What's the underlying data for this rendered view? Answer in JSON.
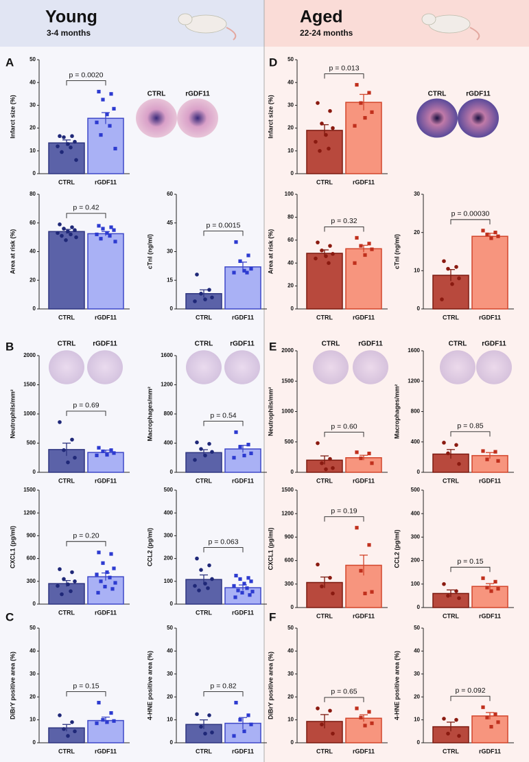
{
  "header": {
    "young": {
      "title": "Young",
      "subtitle": "3-4 months"
    },
    "aged": {
      "title": "Aged",
      "subtitle": "22-24 months"
    }
  },
  "image_labels": [
    [
      "CTRL",
      "rGDF11"
    ],
    [
      "CTRL",
      "rGDF11"
    ],
    [
      "CTRL",
      "rGDF11"
    ],
    [
      "CTRL",
      "rGDF11"
    ],
    [
      "CTRL",
      "rGDF11"
    ],
    [
      "CTRL",
      "rGDF11"
    ]
  ],
  "chart_data": [
    {
      "type": "bar",
      "panel": "A",
      "ylabel": "Infarct size (%)",
      "categories": [
        "CTRL",
        "rGDF11"
      ],
      "values": [
        13.5,
        24.3
      ],
      "errors": [
        1.3,
        2.5
      ],
      "points": [
        [
          16.5,
          16.5,
          16,
          14,
          13,
          12,
          11.5,
          9.5,
          6
        ],
        [
          36,
          35,
          32.5,
          28.5,
          26,
          22.5,
          21,
          17,
          11
        ]
      ],
      "annotation": "p = 0.0020",
      "ylim": [
        0,
        50
      ],
      "yticks": [
        0,
        10,
        20,
        30,
        40,
        50
      ],
      "colors": [
        "#5b62a8",
        "#a9b1f5"
      ],
      "edge_colors": [
        "#2e3580",
        "#3d47c8"
      ],
      "point_colors": [
        "#1f2878",
        "#2d3bd0"
      ],
      "markers": [
        "circle",
        "square"
      ]
    },
    {
      "type": "bar",
      "ylabel": "Area at risk (%)",
      "categories": [
        "CTRL",
        "rGDF11"
      ],
      "values": [
        54,
        52.5
      ],
      "errors": [
        1.5,
        1.5
      ],
      "points": [
        [
          59,
          57,
          56,
          55,
          54,
          53,
          52,
          51,
          50,
          48
        ],
        [
          58,
          57,
          56,
          55,
          53,
          52,
          51,
          49,
          47
        ]
      ],
      "annotation": "p = 0.42",
      "ylim": [
        0,
        80
      ],
      "yticks": [
        0,
        20,
        40,
        60,
        80
      ],
      "colors": [
        "#5b62a8",
        "#a9b1f5"
      ],
      "edge_colors": [
        "#2e3580",
        "#3d47c8"
      ],
      "point_colors": [
        "#1f2878",
        "#2d3bd0"
      ],
      "markers": [
        "circle",
        "square"
      ]
    },
    {
      "type": "bar",
      "ylabel": "cTnI (ng/ml)",
      "categories": [
        "CTRL",
        "rGDF11"
      ],
      "values": [
        8,
        22
      ],
      "errors": [
        2,
        2.5
      ],
      "points": [
        [
          18,
          10,
          8,
          6,
          5,
          4
        ],
        [
          35,
          28,
          25,
          21,
          20,
          19,
          19
        ]
      ],
      "annotation": "p = 0.0015",
      "ylim": [
        0,
        60
      ],
      "yticks": [
        0,
        15,
        30,
        45,
        60
      ],
      "colors": [
        "#5b62a8",
        "#a9b1f5"
      ],
      "edge_colors": [
        "#2e3580",
        "#3d47c8"
      ],
      "point_colors": [
        "#1f2878",
        "#2d3bd0"
      ],
      "markers": [
        "circle",
        "square"
      ]
    },
    {
      "type": "bar",
      "panel": "B",
      "ylabel": "Neutrophils/mm²",
      "categories": [
        "CTRL",
        "rGDF11"
      ],
      "values": [
        390,
        340
      ],
      "errors": [
        110,
        40
      ],
      "points": [
        [
          860,
          560,
          380,
          250,
          170
        ],
        [
          420,
          380,
          360,
          330,
          300,
          290
        ]
      ],
      "annotation": "p = 0.69",
      "ylim": [
        0,
        2000
      ],
      "yticks": [
        0,
        500,
        1000,
        1500,
        2000
      ],
      "colors": [
        "#5b62a8",
        "#a9b1f5"
      ],
      "edge_colors": [
        "#2e3580",
        "#3d47c8"
      ],
      "point_colors": [
        "#1f2878",
        "#2d3bd0"
      ],
      "markers": [
        "circle",
        "square"
      ]
    },
    {
      "type": "bar",
      "ylabel": "Macrophages/mm²",
      "categories": [
        "CTRL",
        "rGDF11"
      ],
      "values": [
        270,
        320
      ],
      "errors": [
        40,
        50
      ],
      "points": [
        [
          410,
          390,
          320,
          280,
          230,
          170
        ],
        [
          550,
          380,
          350,
          260,
          230,
          200
        ]
      ],
      "annotation": "p = 0.54",
      "ylim": [
        0,
        1600
      ],
      "yticks": [
        0,
        400,
        800,
        1200,
        1600
      ],
      "colors": [
        "#5b62a8",
        "#a9b1f5"
      ],
      "edge_colors": [
        "#2e3580",
        "#3d47c8"
      ],
      "point_colors": [
        "#1f2878",
        "#2d3bd0"
      ],
      "markers": [
        "circle",
        "square"
      ]
    },
    {
      "type": "bar",
      "ylabel": "CXCL1 (pg/ml)",
      "categories": [
        "CTRL",
        "rGDF11"
      ],
      "values": [
        270,
        360
      ],
      "errors": [
        40,
        50
      ],
      "points": [
        [
          460,
          420,
          330,
          300,
          260,
          240,
          170,
          130
        ],
        [
          680,
          660,
          540,
          470,
          420,
          390,
          350,
          300,
          280,
          230,
          200,
          150
        ]
      ],
      "annotation": "p = 0.20",
      "ylim": [
        0,
        1500
      ],
      "yticks": [
        0,
        300,
        600,
        900,
        1200,
        1500
      ],
      "colors": [
        "#5b62a8",
        "#a9b1f5"
      ],
      "edge_colors": [
        "#2e3580",
        "#3d47c8"
      ],
      "point_colors": [
        "#1f2878",
        "#2d3bd0"
      ],
      "markers": [
        "circle",
        "square"
      ]
    },
    {
      "type": "bar",
      "ylabel": "CCL2 (pg/ml)",
      "categories": [
        "CTRL",
        "rGDF11"
      ],
      "values": [
        108,
        72
      ],
      "errors": [
        20,
        12
      ],
      "points": [
        [
          200,
          170,
          150,
          110,
          90,
          80,
          70,
          60
        ],
        [
          125,
          115,
          110,
          100,
          90,
          80,
          70,
          60,
          55,
          50,
          40,
          30
        ]
      ],
      "annotation": "p = 0.063",
      "ylim": [
        0,
        500
      ],
      "yticks": [
        0,
        100,
        200,
        300,
        400,
        500
      ],
      "colors": [
        "#5b62a8",
        "#a9b1f5"
      ],
      "edge_colors": [
        "#2e3580",
        "#3d47c8"
      ],
      "point_colors": [
        "#1f2878",
        "#2d3bd0"
      ],
      "markers": [
        "circle",
        "square"
      ]
    },
    {
      "type": "bar",
      "panel": "C",
      "ylabel": "DiBrY positive area (%)",
      "categories": [
        "CTRL",
        "rGDF11"
      ],
      "values": [
        6.5,
        9.7
      ],
      "errors": [
        1.5,
        1.5
      ],
      "points": [
        [
          12,
          9,
          6,
          5,
          3
        ],
        [
          17.5,
          13,
          10,
          9.5,
          9,
          8.5
        ]
      ],
      "annotation": "p = 0.15",
      "ylim": [
        0,
        50
      ],
      "yticks": [
        0,
        10,
        20,
        30,
        40,
        50
      ],
      "colors": [
        "#5b62a8",
        "#a9b1f5"
      ],
      "edge_colors": [
        "#2e3580",
        "#3d47c8"
      ],
      "point_colors": [
        "#1f2878",
        "#2d3bd0"
      ],
      "markers": [
        "circle",
        "square"
      ]
    },
    {
      "type": "bar",
      "ylabel": "4-HNE positive area (%)",
      "categories": [
        "CTRL",
        "rGDF11"
      ],
      "values": [
        8,
        8.5
      ],
      "errors": [
        2,
        2.5
      ],
      "points": [
        [
          12.5,
          12,
          7,
          4.5,
          4
        ],
        [
          17.5,
          12,
          10,
          8,
          5,
          3
        ]
      ],
      "annotation": "p = 0.82",
      "ylim": [
        0,
        50
      ],
      "yticks": [
        0,
        10,
        20,
        30,
        40,
        50
      ],
      "colors": [
        "#5b62a8",
        "#a9b1f5"
      ],
      "edge_colors": [
        "#2e3580",
        "#3d47c8"
      ],
      "point_colors": [
        "#1f2878",
        "#2d3bd0"
      ],
      "markers": [
        "circle",
        "square"
      ]
    },
    {
      "type": "bar",
      "panel": "D",
      "ylabel": "Infarct size (%)",
      "categories": [
        "CTRL",
        "rGDF11"
      ],
      "values": [
        19,
        31.3
      ],
      "errors": [
        2.5,
        3.5
      ],
      "points": [
        [
          31,
          27.5,
          22,
          20,
          17,
          14,
          11,
          10
        ],
        [
          39,
          35.5,
          31,
          27,
          24.5,
          21
        ]
      ],
      "annotation": "p = 0.013",
      "ylim": [
        0,
        50
      ],
      "yticks": [
        0,
        10,
        20,
        30,
        40,
        50
      ],
      "colors": [
        "#b8493d",
        "#f7957e"
      ],
      "edge_colors": [
        "#7b1a10",
        "#d2452b"
      ],
      "point_colors": [
        "#8a1a10",
        "#c0301d"
      ],
      "markers": [
        "circle",
        "square"
      ]
    },
    {
      "type": "bar",
      "ylabel": "Area at risk (%)",
      "categories": [
        "CTRL",
        "rGDF11"
      ],
      "values": [
        48.5,
        52.5
      ],
      "errors": [
        3,
        3
      ],
      "points": [
        [
          58,
          55,
          51,
          48,
          46,
          44,
          40
        ],
        [
          62,
          57,
          55,
          52,
          47,
          40
        ]
      ],
      "annotation": "p = 0.32",
      "ylim": [
        0,
        100
      ],
      "yticks": [
        0,
        20,
        40,
        60,
        80,
        100
      ],
      "colors": [
        "#b8493d",
        "#f7957e"
      ],
      "edge_colors": [
        "#7b1a10",
        "#d2452b"
      ],
      "point_colors": [
        "#8a1a10",
        "#c0301d"
      ],
      "markers": [
        "circle",
        "square"
      ]
    },
    {
      "type": "bar",
      "ylabel": "cTnI (ng/ml)",
      "categories": [
        "CTRL",
        "rGDF11"
      ],
      "values": [
        8.8,
        19
      ],
      "errors": [
        1.5,
        0.8
      ],
      "points": [
        [
          12.5,
          11,
          10.5,
          8,
          6.5,
          2.5
        ],
        [
          20.5,
          20,
          19.5,
          19,
          18.5
        ]
      ],
      "annotation": "p = 0.00030",
      "ylim": [
        0,
        30
      ],
      "yticks": [
        0,
        10,
        20,
        30
      ],
      "colors": [
        "#b8493d",
        "#f7957e"
      ],
      "edge_colors": [
        "#7b1a10",
        "#d2452b"
      ],
      "point_colors": [
        "#8a1a10",
        "#c0301d"
      ],
      "markers": [
        "circle",
        "square"
      ]
    },
    {
      "type": "bar",
      "panel": "E",
      "ylabel": "Neutrophils/mm²",
      "categories": [
        "CTRL",
        "rGDF11"
      ],
      "values": [
        200,
        240
      ],
      "errors": [
        70,
        40
      ],
      "points": [
        [
          480,
          220,
          150,
          70,
          50
        ],
        [
          330,
          310,
          230,
          150
        ]
      ],
      "annotation": "p = 0.60",
      "ylim": [
        0,
        2000
      ],
      "yticks": [
        0,
        500,
        1000,
        1500,
        2000
      ],
      "colors": [
        "#b8493d",
        "#f7957e"
      ],
      "edge_colors": [
        "#7b1a10",
        "#d2452b"
      ],
      "point_colors": [
        "#8a1a10",
        "#c0301d"
      ],
      "markers": [
        "circle",
        "square"
      ]
    },
    {
      "type": "bar",
      "ylabel": "Macrophages/mm²",
      "categories": [
        "CTRL",
        "rGDF11"
      ],
      "values": [
        240,
        220
      ],
      "errors": [
        60,
        40
      ],
      "points": [
        [
          390,
          360,
          250,
          110
        ],
        [
          280,
          270,
          170,
          150
        ]
      ],
      "annotation": "p = 0.85",
      "ylim": [
        0,
        1600
      ],
      "yticks": [
        0,
        400,
        800,
        1200,
        1600
      ],
      "colors": [
        "#b8493d",
        "#f7957e"
      ],
      "edge_colors": [
        "#7b1a10",
        "#d2452b"
      ],
      "point_colors": [
        "#8a1a10",
        "#c0301d"
      ],
      "markers": [
        "circle",
        "square"
      ]
    },
    {
      "type": "bar",
      "ylabel": "CXCL1 (pg/ml)",
      "categories": [
        "CTRL",
        "rGDF11"
      ],
      "values": [
        320,
        540
      ],
      "errors": [
        70,
        130
      ],
      "points": [
        [
          550,
          380,
          270,
          180
        ],
        [
          1020,
          800,
          470,
          200,
          180
        ]
      ],
      "annotation": "p = 0.19",
      "ylim": [
        0,
        1500
      ],
      "yticks": [
        0,
        300,
        600,
        900,
        1200,
        1500
      ],
      "colors": [
        "#b8493d",
        "#f7957e"
      ],
      "edge_colors": [
        "#7b1a10",
        "#d2452b"
      ],
      "point_colors": [
        "#8a1a10",
        "#c0301d"
      ],
      "markers": [
        "circle",
        "square"
      ]
    },
    {
      "type": "bar",
      "ylabel": "CCL2 (pg/ml)",
      "categories": [
        "CTRL",
        "rGDF11"
      ],
      "values": [
        60,
        90
      ],
      "errors": [
        15,
        12
      ],
      "points": [
        [
          100,
          70,
          50,
          40
        ],
        [
          125,
          110,
          85,
          80,
          70
        ]
      ],
      "annotation": "p = 0.15",
      "ylim": [
        0,
        500
      ],
      "yticks": [
        0,
        100,
        200,
        300,
        400,
        500
      ],
      "colors": [
        "#b8493d",
        "#f7957e"
      ],
      "edge_colors": [
        "#7b1a10",
        "#d2452b"
      ],
      "point_colors": [
        "#8a1a10",
        "#c0301d"
      ],
      "markers": [
        "circle",
        "square"
      ]
    },
    {
      "type": "bar",
      "panel": "F",
      "ylabel": "DiBrY positive area (%)",
      "categories": [
        "CTRL",
        "rGDF11"
      ],
      "values": [
        9.3,
        10.7
      ],
      "errors": [
        3,
        1.5
      ],
      "points": [
        [
          15,
          14,
          8,
          4
        ],
        [
          15,
          13.5,
          11,
          8.5,
          7.5
        ]
      ],
      "annotation": "p = 0.65",
      "ylim": [
        0,
        50
      ],
      "yticks": [
        0,
        10,
        20,
        30,
        40,
        50
      ],
      "colors": [
        "#b8493d",
        "#f7957e"
      ],
      "edge_colors": [
        "#7b1a10",
        "#d2452b"
      ],
      "point_colors": [
        "#8a1a10",
        "#c0301d"
      ],
      "markers": [
        "circle",
        "square"
      ]
    },
    {
      "type": "bar",
      "ylabel": "4-HNE positive area (%)",
      "categories": [
        "CTRL",
        "rGDF11"
      ],
      "values": [
        7,
        11.7
      ],
      "errors": [
        2,
        1.5
      ],
      "points": [
        [
          10.5,
          10,
          4,
          3
        ],
        [
          15.5,
          12.5,
          11,
          9,
          7
        ]
      ],
      "annotation": "p = 0.092",
      "ylim": [
        0,
        50
      ],
      "yticks": [
        0,
        10,
        20,
        30,
        40,
        50
      ],
      "colors": [
        "#b8493d",
        "#f7957e"
      ],
      "edge_colors": [
        "#7b1a10",
        "#d2452b"
      ],
      "point_colors": [
        "#8a1a10",
        "#c0301d"
      ],
      "markers": [
        "circle",
        "square"
      ]
    }
  ]
}
